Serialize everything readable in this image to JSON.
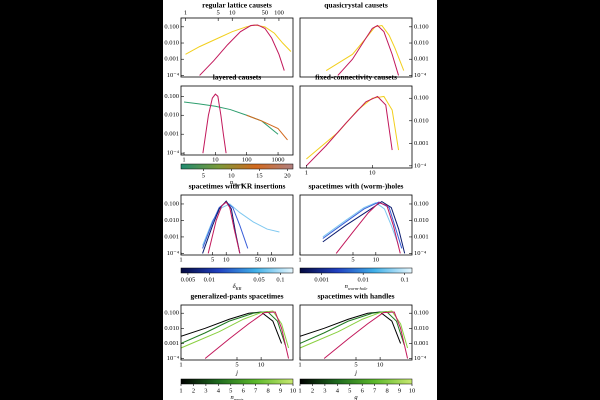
{
  "chart_data": [
    {
      "type": "line",
      "title": "regular lattice causets",
      "log": true,
      "yaxis": "left",
      "xtick_side": "top",
      "xlim": [
        0.8,
        200
      ],
      "ylim": [
        8e-05,
        0.35
      ],
      "xticks": [
        1,
        5,
        10,
        50,
        100
      ],
      "yticks": [
        {
          "value": 0.1,
          "label": "0.100"
        },
        {
          "value": 0.01,
          "label": "0.010"
        },
        0.001,
        {
          "value": 0.0001,
          "label": "10⁻⁴"
        }
      ],
      "series": [
        {
          "color": "#f2cf1d",
          "x": [
            1,
            2,
            5,
            10,
            20,
            30,
            50,
            80,
            120,
            180
          ],
          "values": [
            0.002,
            0.006,
            0.02,
            0.05,
            0.1,
            0.13,
            0.1,
            0.04,
            0.01,
            0.003
          ]
        },
        {
          "color": "#c2185b",
          "x": [
            2,
            4,
            8,
            15,
            25,
            35,
            50,
            70,
            100,
            130
          ],
          "values": [
            0.0001,
            0.0008,
            0.008,
            0.05,
            0.12,
            0.13,
            0.08,
            0.02,
            0.002,
            0.0002
          ]
        }
      ]
    },
    {
      "type": "line",
      "title": "quasicrystal causets",
      "log": true,
      "yaxis": "right",
      "xtick_side": "top",
      "xlim": [
        0.8,
        40
      ],
      "ylim": [
        8e-05,
        0.35
      ],
      "xticks": [],
      "yticks": [
        {
          "value": 0.1,
          "label": "0.100"
        },
        {
          "value": 0.01,
          "label": "0.010"
        },
        0.001,
        {
          "value": 0.0001,
          "label": "10⁻⁴"
        }
      ],
      "series": [
        {
          "color": "#f2cf1d",
          "x": [
            2,
            5,
            8,
            11,
            14,
            18,
            22,
            30
          ],
          "values": [
            0.0002,
            0.002,
            0.02,
            0.1,
            0.12,
            0.03,
            0.005,
            0.0002
          ]
        },
        {
          "color": "#c2185b",
          "x": [
            3,
            5,
            8,
            10,
            12,
            15,
            20,
            25
          ],
          "values": [
            0.0001,
            0.001,
            0.02,
            0.08,
            0.12,
            0.05,
            0.002,
            0.0001
          ]
        }
      ]
    },
    {
      "type": "line",
      "title": "layered causets",
      "log": true,
      "yaxis": "left",
      "xtick_side": "bottom",
      "xlim": [
        0.8,
        3000
      ],
      "ylim": [
        8e-05,
        0.35
      ],
      "xticks": [
        1,
        10,
        100,
        1000
      ],
      "yticks": [
        {
          "value": 0.1,
          "label": "0.100"
        },
        {
          "value": 0.01,
          "label": "0.010"
        },
        0.001,
        {
          "value": 0.0001,
          "label": "10⁻⁴"
        }
      ],
      "series": [
        {
          "color": "#2e9e6e",
          "x": [
            1,
            3,
            10,
            30,
            100,
            300,
            1000
          ],
          "values": [
            0.05,
            0.04,
            0.03,
            0.02,
            0.01,
            0.005,
            0.001
          ]
        },
        {
          "color": "#d2691e",
          "x": [
            100,
            300,
            1000,
            2000
          ],
          "values": [
            0.01,
            0.005,
            0.002,
            0.0005
          ]
        },
        {
          "color": "#c2185b",
          "x": [
            4,
            6,
            8,
            10,
            12,
            15,
            18,
            22
          ],
          "values": [
            0.0001,
            0.01,
            0.08,
            0.13,
            0.1,
            0.01,
            0.001,
            0.0001
          ]
        }
      ],
      "colorbar": {
        "label": {
          "text": "n",
          "sub": "layers"
        },
        "log": false,
        "lim": [
          1,
          21
        ],
        "ticks": [
          5,
          10,
          15,
          20
        ],
        "colors": [
          "#1f8a70",
          "#7a9a3a",
          "#d2691e",
          "#b08080"
        ]
      }
    },
    {
      "type": "line",
      "title": "fixed-connectivity causets",
      "log": true,
      "yaxis": "right",
      "xtick_side": "bottom",
      "xlim": [
        0.8,
        40
      ],
      "ylim": [
        8e-05,
        0.35
      ],
      "xticks": [
        1,
        10
      ],
      "yticks": [
        {
          "value": 0.1,
          "label": "0.100"
        },
        {
          "value": 0.01,
          "label": "0.010"
        },
        0.001,
        {
          "value": 0.0001,
          "label": "10⁻⁴"
        }
      ],
      "series": [
        {
          "color": "#f2cf1d",
          "x": [
            1,
            3,
            6,
            10,
            15,
            20,
            25
          ],
          "values": [
            0.0002,
            0.003,
            0.03,
            0.1,
            0.12,
            0.03,
            0.0005
          ]
        },
        {
          "color": "#c2185b",
          "x": [
            1,
            2,
            4,
            8,
            12,
            16,
            20
          ],
          "values": [
            0.0001,
            0.0008,
            0.008,
            0.07,
            0.12,
            0.05,
            0.0005
          ]
        }
      ]
    },
    {
      "type": "line",
      "title": "spacetimes with KR insertions",
      "log": true,
      "yaxis": "left",
      "xtick_side": "bottom",
      "xlim": [
        1,
        300
      ],
      "ylim": [
        8e-05,
        0.35
      ],
      "xticks": [
        1,
        5,
        10,
        50,
        100
      ],
      "yticks": [
        {
          "value": 0.1,
          "label": "0.100"
        },
        {
          "value": 0.01,
          "label": "0.010"
        },
        0.001,
        {
          "value": 0.0001,
          "label": "10⁻⁴"
        }
      ],
      "series": [
        {
          "color": "#7fc8f0",
          "x": [
            3,
            5,
            8,
            12,
            20,
            40,
            80,
            150
          ],
          "values": [
            0.0003,
            0.01,
            0.06,
            0.1,
            0.03,
            0.008,
            0.003,
            0.002
          ]
        },
        {
          "color": "#3a5fd9",
          "x": [
            3,
            5,
            7,
            10,
            14,
            20,
            30
          ],
          "values": [
            0.0002,
            0.008,
            0.06,
            0.13,
            0.06,
            0.005,
            0.0002
          ]
        },
        {
          "color": "#0a1a6e",
          "x": [
            3,
            5,
            7,
            10,
            13,
            16,
            20
          ],
          "values": [
            0.0001,
            0.005,
            0.05,
            0.15,
            0.05,
            0.002,
            0.0001
          ]
        },
        {
          "color": "#c2185b",
          "x": [
            4,
            6,
            8,
            10,
            12,
            15,
            20
          ],
          "values": [
            0.0001,
            0.01,
            0.08,
            0.13,
            0.06,
            0.003,
            0.0001
          ]
        }
      ],
      "colorbar": {
        "label": {
          "text": "δ",
          "sub": "KR"
        },
        "log": true,
        "lim": [
          0.004,
          0.15
        ],
        "ticks": [
          0.005,
          0.01,
          0.05,
          0.1
        ],
        "colors": [
          "#050a40",
          "#2040c0",
          "#40b0e8",
          "#e8f8ff"
        ]
      }
    },
    {
      "type": "line",
      "title": "spacetimes with (worm-)holes",
      "log": true,
      "yaxis": "right",
      "xtick_side": "bottom",
      "xlim": [
        1,
        30
      ],
      "ylim": [
        8e-05,
        0.35
      ],
      "xticks": [
        1,
        5,
        10
      ],
      "yticks": [
        {
          "value": 0.1,
          "label": "0.100"
        },
        {
          "value": 0.01,
          "label": "0.010"
        },
        0.001,
        {
          "value": 0.0001,
          "label": "10⁻⁴"
        }
      ],
      "series": [
        {
          "color": "#7fc8f0",
          "x": [
            2,
            4,
            7,
            10,
            13,
            16,
            20
          ],
          "values": [
            0.001,
            0.01,
            0.06,
            0.12,
            0.05,
            0.005,
            0.0003
          ]
        },
        {
          "color": "#3a5fd9",
          "x": [
            2,
            4,
            7,
            11,
            15,
            18,
            22
          ],
          "values": [
            0.0008,
            0.008,
            0.05,
            0.13,
            0.06,
            0.004,
            0.0002
          ]
        },
        {
          "color": "#0a1a6e",
          "x": [
            2,
            4,
            8,
            12,
            16,
            20,
            24
          ],
          "values": [
            0.0005,
            0.005,
            0.04,
            0.14,
            0.06,
            0.003,
            0.0001
          ]
        },
        {
          "color": "#c2185b",
          "x": [
            3,
            5,
            8,
            11,
            14,
            17,
            21
          ],
          "values": [
            0.0001,
            0.002,
            0.03,
            0.12,
            0.08,
            0.005,
            0.0001
          ]
        }
      ],
      "colorbar": {
        "label": {
          "text": "n",
          "sub": "worm-hole"
        },
        "log": true,
        "lim": [
          0.0003,
          0.15
        ],
        "ticks": [
          0.001,
          0.01,
          0.1
        ],
        "colors": [
          "#050a40",
          "#2040c0",
          "#40b0e8",
          "#e8f8ff"
        ]
      }
    },
    {
      "type": "line",
      "title": "generalized-pants spacetimes",
      "log": true,
      "yaxis": "left",
      "xtick_side": "bottom",
      "xlim": [
        1,
        25
      ],
      "ylim": [
        8e-05,
        0.35
      ],
      "xticks": [
        1,
        5,
        10
      ],
      "xlabel": "j",
      "yticks": [
        {
          "value": 0.1,
          "label": "0.100"
        },
        {
          "value": 0.01,
          "label": "0.010"
        },
        0.001,
        {
          "value": 0.0001,
          "label": "10⁻⁴"
        }
      ],
      "series": [
        {
          "color": "#000000",
          "x": [
            1,
            2,
            4,
            7,
            10,
            14,
            18
          ],
          "values": [
            0.003,
            0.01,
            0.04,
            0.1,
            0.12,
            0.03,
            0.001
          ]
        },
        {
          "color": "#1f7a1f",
          "x": [
            1,
            2,
            4,
            8,
            12,
            16,
            20
          ],
          "values": [
            0.001,
            0.005,
            0.03,
            0.1,
            0.13,
            0.03,
            0.0008
          ]
        },
        {
          "color": "#8ad040",
          "x": [
            1,
            3,
            6,
            10,
            14,
            18,
            22
          ],
          "values": [
            0.0005,
            0.006,
            0.04,
            0.11,
            0.14,
            0.02,
            0.0005
          ]
        },
        {
          "color": "#c2185b",
          "x": [
            2,
            4,
            7,
            11,
            15,
            18,
            22
          ],
          "values": [
            0.0001,
            0.002,
            0.02,
            0.11,
            0.12,
            0.01,
            0.0001
          ]
        }
      ],
      "colorbar": {
        "label": {
          "text": "n",
          "sub": "pants"
        },
        "log": false,
        "lim": [
          1,
          10
        ],
        "ticks": [
          1,
          2,
          3,
          4,
          5,
          6,
          7,
          8,
          9,
          10
        ],
        "colors": [
          "#000000",
          "#1f6a1f",
          "#5cb82c",
          "#c8e870"
        ]
      }
    },
    {
      "type": "line",
      "title": "spacetimes with handles",
      "log": true,
      "yaxis": "right",
      "xtick_side": "bottom",
      "xlim": [
        1,
        25
      ],
      "ylim": [
        8e-05,
        0.35
      ],
      "xticks": [
        1,
        5,
        10
      ],
      "xlabel": "j",
      "yticks": [
        {
          "value": 0.1,
          "label": "0.100"
        },
        {
          "value": 0.01,
          "label": "0.010"
        },
        0.001,
        {
          "value": 0.0001,
          "label": "10⁻⁴"
        }
      ],
      "series": [
        {
          "color": "#000000",
          "x": [
            1,
            2,
            4,
            7,
            10,
            14,
            18
          ],
          "values": [
            0.003,
            0.01,
            0.04,
            0.1,
            0.12,
            0.03,
            0.001
          ]
        },
        {
          "color": "#1f7a1f",
          "x": [
            1,
            2,
            4,
            8,
            12,
            16,
            20
          ],
          "values": [
            0.001,
            0.005,
            0.03,
            0.1,
            0.13,
            0.03,
            0.0008
          ]
        },
        {
          "color": "#8ad040",
          "x": [
            1,
            3,
            6,
            10,
            14,
            18,
            22
          ],
          "values": [
            0.0005,
            0.006,
            0.04,
            0.11,
            0.14,
            0.02,
            0.0005
          ]
        },
        {
          "color": "#c2185b",
          "x": [
            2,
            4,
            7,
            11,
            15,
            18,
            22
          ],
          "values": [
            0.0001,
            0.002,
            0.02,
            0.11,
            0.12,
            0.01,
            0.0001
          ]
        }
      ],
      "colorbar": {
        "label": {
          "text": "g",
          "sub": null
        },
        "log": false,
        "lim": [
          1,
          10
        ],
        "ticks": [
          1,
          2,
          3,
          4,
          5,
          6,
          7,
          8,
          9,
          10
        ],
        "colors": [
          "#000000",
          "#1f6a1f",
          "#5cb82c",
          "#c8e870"
        ]
      }
    }
  ]
}
